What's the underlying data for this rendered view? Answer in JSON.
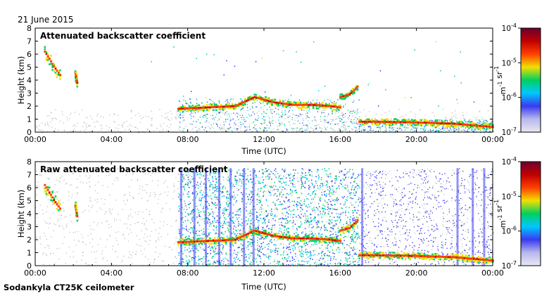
{
  "date": "21 June 2015",
  "footer": "Sodankyla CT25K ceilometer",
  "colors": {
    "scale": [
      "#e8e8f4",
      "#b8b8ec",
      "#3a3af0",
      "#00c8ff",
      "#00d060",
      "#f0e000",
      "#ff4000",
      "#c00000",
      "#6a0030"
    ],
    "axis": "#000000",
    "grey_noise": "#c8c8c8"
  },
  "chart_data": [
    {
      "type": "heatmap",
      "title": "Attenuated backscatter coefficient",
      "xlabel": "Time (UTC)",
      "ylabel": "Height (km)",
      "xlim": [
        0,
        24
      ],
      "ylim": [
        0,
        8
      ],
      "x_ticks": [
        "00:00",
        "04:00",
        "08:00",
        "12:00",
        "16:00",
        "20:00",
        "00:00"
      ],
      "y_ticks": [
        "0",
        "1",
        "2",
        "3",
        "4",
        "5",
        "6",
        "7",
        "8"
      ],
      "colorbar": {
        "scale": "log",
        "min": "10^-7",
        "max": "10^-4",
        "unit": "m-1 sr-1",
        "tick_labels": [
          "10-4",
          "10-5",
          "10-6",
          "10-7"
        ]
      },
      "cloud_layers": [
        {
          "t": [
            0.5,
            0.8,
            1.0,
            1.3
          ],
          "h": [
            6.2,
            5.5,
            5.0,
            4.4
          ]
        },
        {
          "t": [
            2.1,
            2.2
          ],
          "h": [
            4.6,
            3.8
          ]
        },
        {
          "t": [
            7.5,
            9.0,
            10.5,
            11.5,
            12.5,
            13.5,
            14.5,
            15.5,
            16.0
          ],
          "h": [
            1.8,
            1.9,
            2.0,
            2.7,
            2.3,
            2.1,
            2.1,
            2.0,
            1.9
          ]
        },
        {
          "t": [
            16.0,
            16.5,
            16.9
          ],
          "h": [
            2.7,
            2.9,
            3.5
          ]
        },
        {
          "t": [
            17.0,
            18.0,
            20.0,
            22.0,
            24.0
          ],
          "h": [
            0.8,
            0.8,
            0.75,
            0.65,
            0.4
          ]
        }
      ]
    },
    {
      "type": "heatmap",
      "title": "Raw attenuated backscatter coefficient",
      "xlabel": "Time (UTC)",
      "ylabel": "Height (km)",
      "xlim": [
        0,
        24
      ],
      "ylim": [
        0,
        8
      ],
      "x_ticks": [
        "00:00",
        "04:00",
        "08:00",
        "12:00",
        "16:00",
        "20:00",
        "00:00"
      ],
      "y_ticks": [
        "0",
        "1",
        "2",
        "3",
        "4",
        "5",
        "6",
        "7",
        "8"
      ],
      "colorbar": {
        "scale": "log",
        "min": "10^-7",
        "max": "10^-4",
        "unit": "m-1 sr-1",
        "tick_labels": [
          "10-4",
          "10-5",
          "10-6",
          "10-7"
        ]
      },
      "cloud_layers": [
        {
          "t": [
            0.5,
            0.8,
            1.0,
            1.3
          ],
          "h": [
            6.2,
            5.5,
            5.0,
            4.4
          ]
        },
        {
          "t": [
            2.1,
            2.2
          ],
          "h": [
            4.6,
            3.8
          ]
        },
        {
          "t": [
            7.5,
            9.0,
            10.5,
            11.5,
            12.5,
            13.5,
            14.5,
            15.5,
            16.0
          ],
          "h": [
            1.8,
            1.9,
            2.0,
            2.7,
            2.3,
            2.1,
            2.1,
            2.0,
            1.9
          ]
        },
        {
          "t": [
            16.0,
            16.5,
            16.9
          ],
          "h": [
            2.7,
            2.9,
            3.5
          ]
        },
        {
          "t": [
            17.0,
            18.0,
            20.0,
            22.0,
            24.0
          ],
          "h": [
            0.8,
            0.8,
            0.75,
            0.65,
            0.4
          ]
        }
      ]
    }
  ]
}
